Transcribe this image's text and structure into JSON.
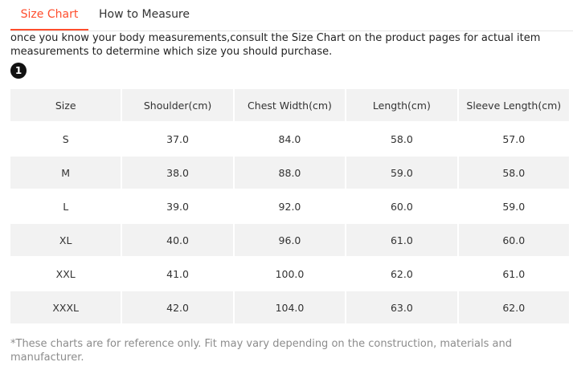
{
  "tabs": [
    {
      "label": "Size Chart",
      "active": true
    },
    {
      "label": "How to Measure",
      "active": false
    }
  ],
  "intro_text": "once you know your body measurements,consult the Size Chart on the product pages for actual item measurements to determine which size you should purchase.",
  "step_badge": "1",
  "table": {
    "headers": [
      "Size",
      "Shoulder(cm)",
      "Chest Width(cm)",
      "Length(cm)",
      "Sleeve Length(cm)"
    ],
    "rows": [
      [
        "S",
        "37.0",
        "84.0",
        "58.0",
        "57.0"
      ],
      [
        "M",
        "38.0",
        "88.0",
        "59.0",
        "58.0"
      ],
      [
        "L",
        "39.0",
        "92.0",
        "60.0",
        "59.0"
      ],
      [
        "XL",
        "40.0",
        "96.0",
        "61.0",
        "60.0"
      ],
      [
        "XXL",
        "41.0",
        "100.0",
        "62.0",
        "61.0"
      ],
      [
        "XXXL",
        "42.0",
        "104.0",
        "63.0",
        "62.0"
      ]
    ]
  },
  "footnote": "*These charts are for reference only. Fit may vary depending on the construction, materials and manufacturer.",
  "colors": {
    "accent": "#ff4d2d",
    "row_shade": "#f2f2f2",
    "footnote": "#8c8c8c"
  }
}
